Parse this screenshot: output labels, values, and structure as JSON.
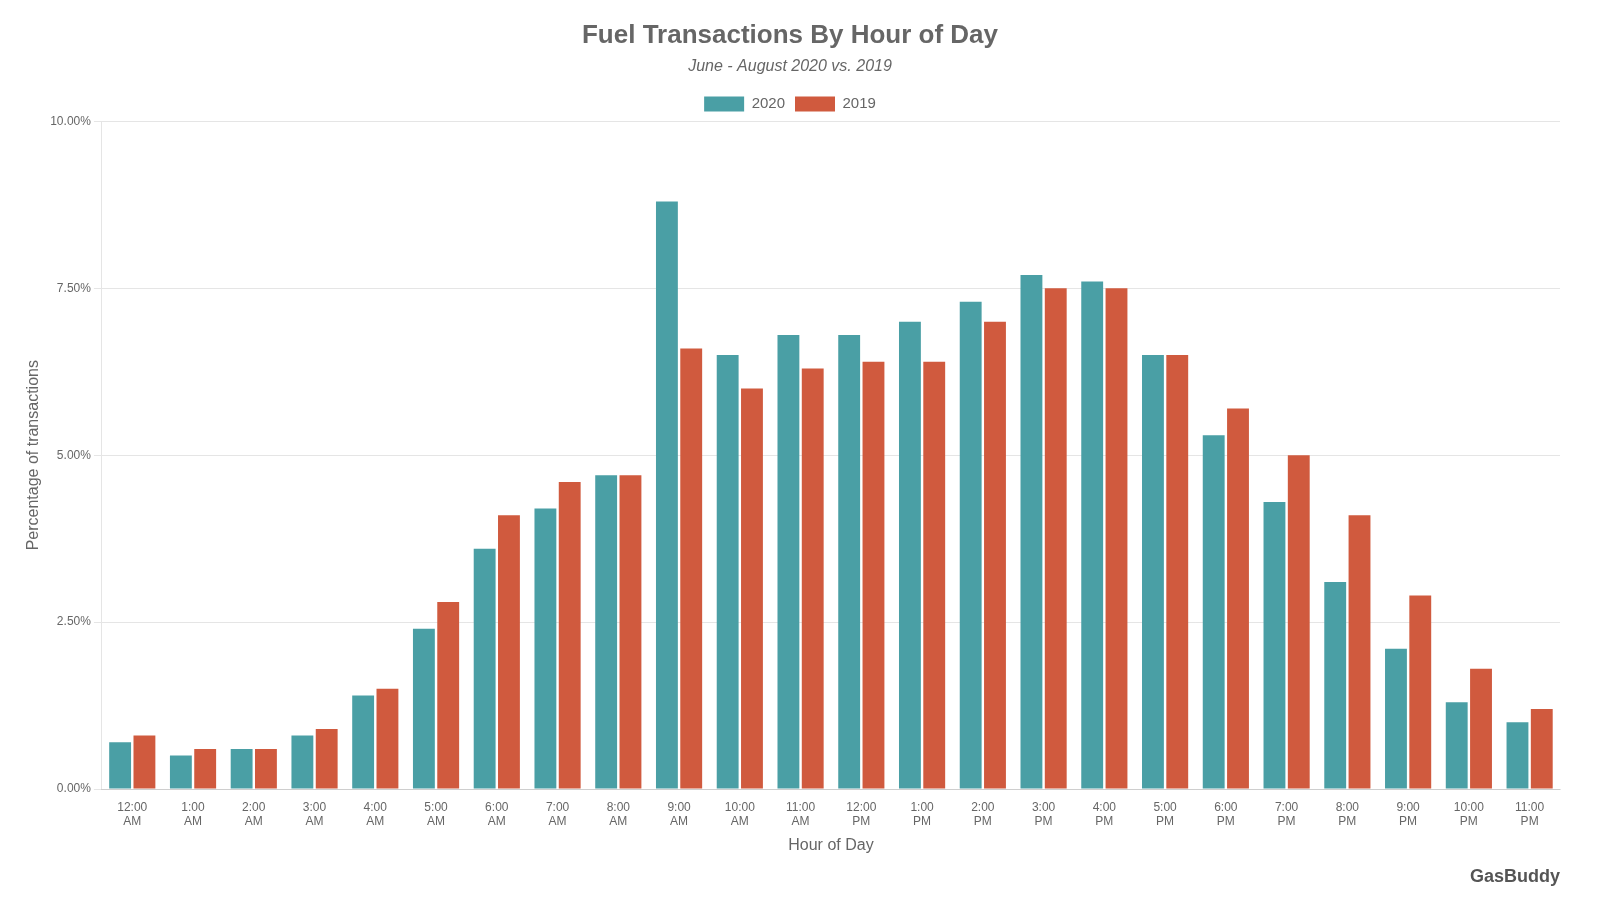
{
  "chart_data": {
    "type": "bar",
    "title": "Fuel Transactions By Hour of Day",
    "subtitle": "June - August 2020 vs. 2019",
    "xlabel": "Hour of Day",
    "ylabel": "Percentage of transactions",
    "annotations": [
      "GasBuddy"
    ],
    "categories": [
      "12:00\nAM",
      "1:00\nAM",
      "2:00\nAM",
      "3:00\nAM",
      "4:00\nAM",
      "5:00\nAM",
      "6:00\nAM",
      "7:00\nAM",
      "8:00\nAM",
      "9:00\nAM",
      "10:00\nAM",
      "11:00\nAM",
      "12:00\nPM",
      "1:00\nPM",
      "2:00\nPM",
      "3:00\nPM",
      "4:00\nPM",
      "5:00\nPM",
      "6:00\nPM",
      "7:00\nPM",
      "8:00\nPM",
      "9:00\nPM",
      "10:00\nPM",
      "11:00\nPM"
    ],
    "series": [
      {
        "name": "2020",
        "color": "#4a9fa5",
        "values": [
          0.007,
          0.005,
          0.006,
          0.008,
          0.014,
          0.024,
          0.036,
          0.042,
          0.047,
          0.088,
          0.065,
          0.068,
          0.068,
          0.07,
          0.073,
          0.077,
          0.076,
          0.065,
          0.053,
          0.043,
          0.031,
          0.021,
          0.013,
          0.01
        ]
      },
      {
        "name": "2019",
        "color": "#d05a3e",
        "values": [
          0.008,
          0.006,
          0.006,
          0.009,
          0.015,
          0.028,
          0.041,
          0.046,
          0.047,
          0.066,
          0.06,
          0.063,
          0.064,
          0.064,
          0.07,
          0.075,
          0.075,
          0.065,
          0.057,
          0.05,
          0.041,
          0.029,
          0.018,
          0.012
        ]
      }
    ],
    "ylim": [
      0,
      0.1
    ],
    "yticks": [
      {
        "value": 0.0,
        "label": "0.00%"
      },
      {
        "value": 0.025,
        "label": "2.50%"
      },
      {
        "value": 0.05,
        "label": "5.00%"
      },
      {
        "value": 0.075,
        "label": "7.50%"
      },
      {
        "value": 0.1,
        "label": "10.00%"
      }
    ],
    "grid": true,
    "legend": "top"
  }
}
